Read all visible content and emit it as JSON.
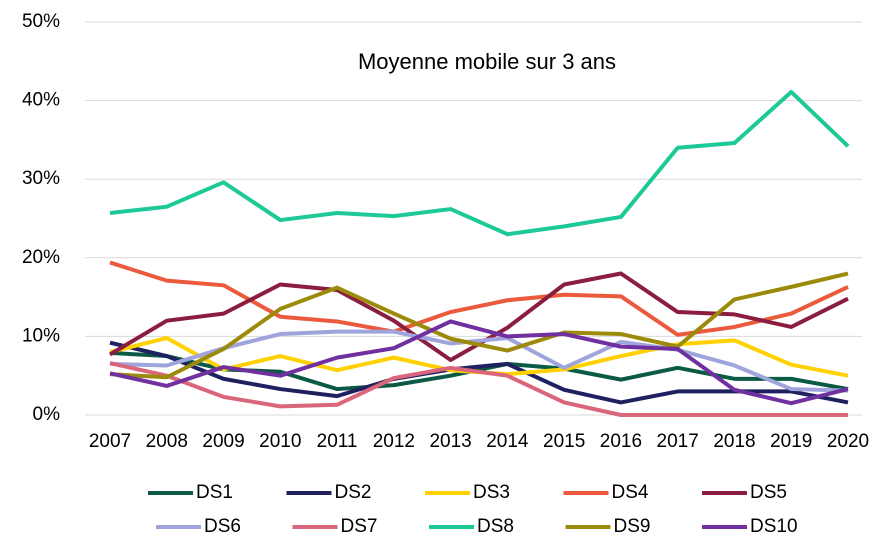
{
  "chart_data": {
    "type": "line",
    "title": "Moyenne mobile sur 3 ans",
    "x": [
      "2007",
      "2008",
      "2009",
      "2010",
      "2011",
      "2012",
      "2013",
      "2014",
      "2015",
      "2016",
      "2017",
      "2018",
      "2019",
      "2020"
    ],
    "ylim": [
      0,
      50
    ],
    "yticks": [
      {
        "value": 0,
        "label": "0%"
      },
      {
        "value": 10,
        "label": "10%"
      },
      {
        "value": 20,
        "label": "20%"
      },
      {
        "value": 30,
        "label": "30%"
      },
      {
        "value": 40,
        "label": "40%"
      },
      {
        "value": 50,
        "label": "50%"
      }
    ],
    "grid": true,
    "legend": "bottom",
    "series": [
      {
        "name": "DS1",
        "color": "#0b5a45",
        "values": [
          7.9,
          7.5,
          5.8,
          5.5,
          3.3,
          3.8,
          5.0,
          6.5,
          5.9,
          4.5,
          6.0,
          4.6,
          4.6,
          3.3
        ]
      },
      {
        "name": "DS2",
        "color": "#1f2060",
        "values": [
          9.2,
          7.5,
          4.6,
          3.3,
          2.4,
          4.6,
          5.8,
          6.5,
          3.2,
          1.6,
          3.0,
          3.0,
          3.0,
          1.6
        ]
      },
      {
        "name": "DS3",
        "color": "#ffd100",
        "values": [
          8.0,
          9.8,
          5.8,
          7.5,
          5.7,
          7.3,
          5.7,
          5.2,
          5.8,
          7.5,
          9.0,
          9.5,
          6.4,
          5.0
        ]
      },
      {
        "name": "DS4",
        "color": "#eb5a3c",
        "values": [
          19.4,
          17.1,
          16.5,
          12.5,
          11.9,
          10.6,
          13.1,
          14.6,
          15.3,
          15.1,
          10.2,
          11.2,
          12.9,
          16.3
        ]
      },
      {
        "name": "DS5",
        "color": "#8b1e3f",
        "values": [
          7.7,
          12.0,
          12.9,
          16.6,
          15.9,
          12.0,
          7.0,
          11.1,
          16.6,
          18.0,
          13.1,
          12.8,
          11.2,
          14.8
        ]
      },
      {
        "name": "DS6",
        "color": "#a0a4dc",
        "values": [
          6.5,
          6.3,
          8.5,
          10.3,
          10.6,
          10.6,
          9.1,
          9.8,
          6.0,
          9.3,
          8.3,
          6.3,
          3.3,
          3.1
        ]
      },
      {
        "name": "DS7",
        "color": "#d9667a",
        "values": [
          6.6,
          5.0,
          2.3,
          1.1,
          1.3,
          4.7,
          6.0,
          5.0,
          1.6,
          0,
          0,
          0,
          0,
          0
        ]
      },
      {
        "name": "DS8",
        "color": "#1dc996",
        "values": [
          25.7,
          26.5,
          29.6,
          24.8,
          25.7,
          25.3,
          26.2,
          23.0,
          24.0,
          25.2,
          34.0,
          34.6,
          41.1,
          34.2
        ]
      },
      {
        "name": "DS9",
        "color": "#9c8a0a",
        "values": [
          5.2,
          4.8,
          8.4,
          13.5,
          16.2,
          12.9,
          9.7,
          8.2,
          10.5,
          10.3,
          8.7,
          14.7,
          16.3,
          18.0
        ]
      },
      {
        "name": "DS10",
        "color": "#7030a0",
        "values": [
          5.3,
          3.7,
          6.1,
          5.0,
          7.3,
          8.5,
          11.9,
          10.0,
          10.3,
          8.7,
          8.4,
          3.2,
          1.5,
          3.3
        ]
      }
    ]
  }
}
